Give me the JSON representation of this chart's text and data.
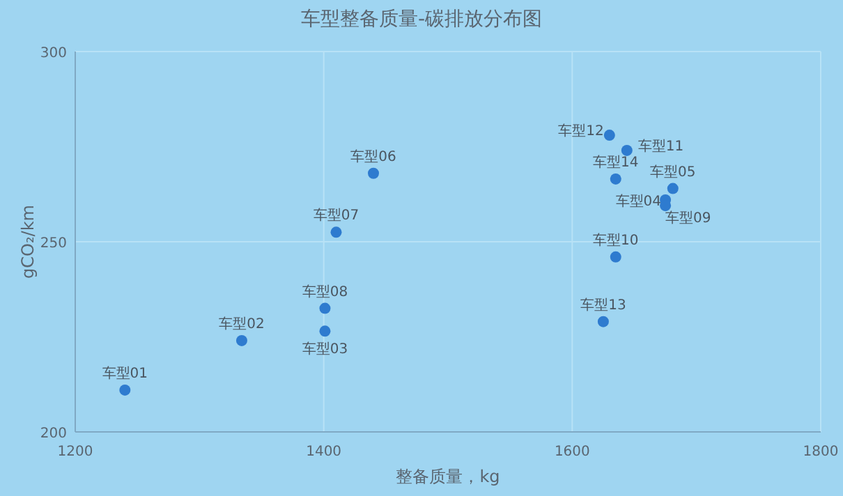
{
  "chart_data": {
    "type": "scatter",
    "title": "车型整备质量-碳排放分布图",
    "xlabel": "整备质量，kg",
    "ylabel": "gCO₂/km",
    "x": [
      1240,
      1334,
      1401,
      1675,
      1681,
      1440,
      1410,
      1401,
      1675,
      1635,
      1644,
      1630,
      1625,
      1635
    ],
    "series": [
      {
        "color": "#2e7bcf",
        "values": [
          211,
          224,
          226.5,
          261,
          264,
          268,
          252.5,
          232.5,
          259.5,
          246,
          274,
          278,
          229,
          266.5
        ]
      }
    ],
    "xlim": [
      1200,
      1800
    ],
    "xticks": [
      1200,
      1400,
      1600,
      1800
    ],
    "ylim": [
      200,
      300
    ],
    "yticks": [
      200,
      250,
      300
    ],
    "grid": true,
    "marker": "circle",
    "annotations": [
      {
        "text": "车型01",
        "x": 1240,
        "y": 211
      },
      {
        "text": "车型02",
        "x": 1334,
        "y": 224
      },
      {
        "text": "车型03",
        "x": 1401,
        "y": 226.5
      },
      {
        "text": "车型04",
        "x": 1675,
        "y": 261
      },
      {
        "text": "车型05",
        "x": 1681,
        "y": 264
      },
      {
        "text": "车型06",
        "x": 1440,
        "y": 268
      },
      {
        "text": "车型07",
        "x": 1410,
        "y": 252.5
      },
      {
        "text": "车型08",
        "x": 1401,
        "y": 232.5
      },
      {
        "text": "车型09",
        "x": 1675,
        "y": 259.5
      },
      {
        "text": "车型10",
        "x": 1635,
        "y": 246
      },
      {
        "text": "车型11",
        "x": 1644,
        "y": 274
      },
      {
        "text": "车型12",
        "x": 1630,
        "y": 278
      },
      {
        "text": "车型13",
        "x": 1625,
        "y": 229
      },
      {
        "text": "车型14",
        "x": 1635,
        "y": 266.5
      }
    ]
  }
}
